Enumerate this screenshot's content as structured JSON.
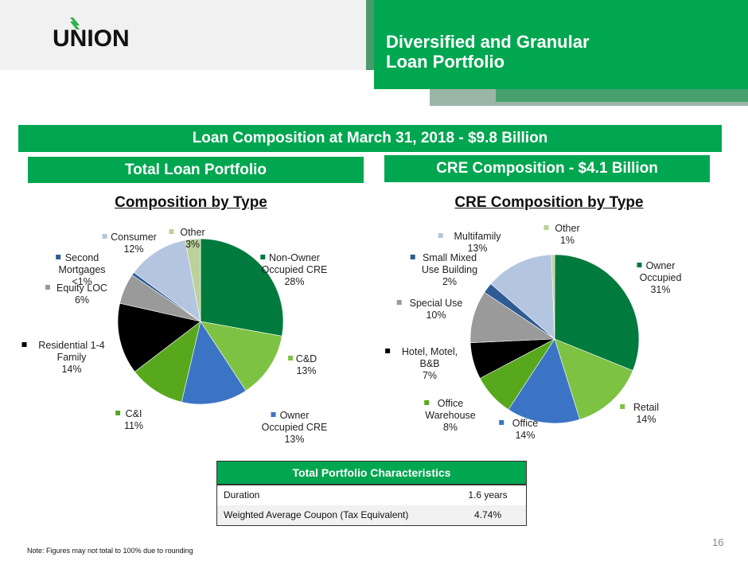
{
  "header": {
    "logo_text": "UNION",
    "title_line1": "Diversified and Granular",
    "title_line2": "Loan Portfolio"
  },
  "banners": {
    "main": "Loan Composition at March 31, 2018 - $9.8 Billion",
    "left": "Total Loan Portfolio",
    "right": "CRE Composition - $4.1 Billion"
  },
  "colors": {
    "brand_green": "#00a650",
    "dark_green": "#007a3d",
    "light_green": "#7dc242",
    "mid_green": "#57a81d",
    "blue": "#3b74c4",
    "black": "#000000",
    "gray": "#9a9a9a",
    "navy": "#2e5b93",
    "light_blue": "#b4c5e0",
    "sage": "#bcd19a"
  },
  "chart_data": [
    {
      "type": "pie",
      "title": "Composition by Type",
      "start": "12 o'clock, clockwise",
      "slices": [
        {
          "label": "Non-Owner Occupied CRE",
          "pct_label": "28%",
          "value": 28,
          "color": "#007a3d"
        },
        {
          "label": "C&D",
          "pct_label": "13%",
          "value": 13,
          "color": "#7dc242"
        },
        {
          "label": "Owner Occupied CRE",
          "pct_label": "13%",
          "value": 13,
          "color": "#3b74c4"
        },
        {
          "label": "C&I",
          "pct_label": "11%",
          "value": 11,
          "color": "#57a81d"
        },
        {
          "label": "Residential 1-4 Family",
          "pct_label": "14%",
          "value": 14,
          "color": "#000000"
        },
        {
          "label": "Equity LOC",
          "pct_label": "6%",
          "value": 6,
          "color": "#9a9a9a"
        },
        {
          "label": "Second Mortgages",
          "pct_label": "<1%",
          "value": 0.6,
          "color": "#2e5b93"
        },
        {
          "label": "Consumer",
          "pct_label": "12%",
          "value": 12,
          "color": "#b4c5e0"
        },
        {
          "label": "Other",
          "pct_label": "3%",
          "value": 3,
          "color": "#bcd19a"
        }
      ]
    },
    {
      "type": "pie",
      "title": "CRE Composition by Type",
      "start": "12 o'clock, clockwise",
      "slices": [
        {
          "label": "Owner Occupied",
          "pct_label": "31%",
          "value": 31,
          "color": "#007a3d"
        },
        {
          "label": "Retail",
          "pct_label": "14%",
          "value": 14,
          "color": "#7dc242"
        },
        {
          "label": "Office",
          "pct_label": "14%",
          "value": 14,
          "color": "#3b74c4"
        },
        {
          "label": "Office Warehouse",
          "pct_label": "8%",
          "value": 8,
          "color": "#57a81d"
        },
        {
          "label": "Hotel, Motel, B&B",
          "pct_label": "7%",
          "value": 7,
          "color": "#000000"
        },
        {
          "label": "Special Use",
          "pct_label": "10%",
          "value": 10,
          "color": "#9a9a9a"
        },
        {
          "label": "Small Mixed Use Building",
          "pct_label": "2%",
          "value": 2,
          "color": "#2e5b93"
        },
        {
          "label": "Multifamily",
          "pct_label": "13%",
          "value": 13,
          "color": "#b4c5e0"
        },
        {
          "label": "Other",
          "pct_label": "1%",
          "value": 0.6,
          "color": "#bcd19a"
        }
      ]
    }
  ],
  "table": {
    "header": "Total Portfolio Characteristics",
    "rows": [
      {
        "label": "Duration",
        "value": "1.6 years"
      },
      {
        "label": "Weighted Average Coupon  (Tax Equivalent)",
        "value": "4.74%"
      }
    ]
  },
  "footer": {
    "page_number": "16",
    "note": "Note: Figures may not total to 100% due to rounding"
  }
}
